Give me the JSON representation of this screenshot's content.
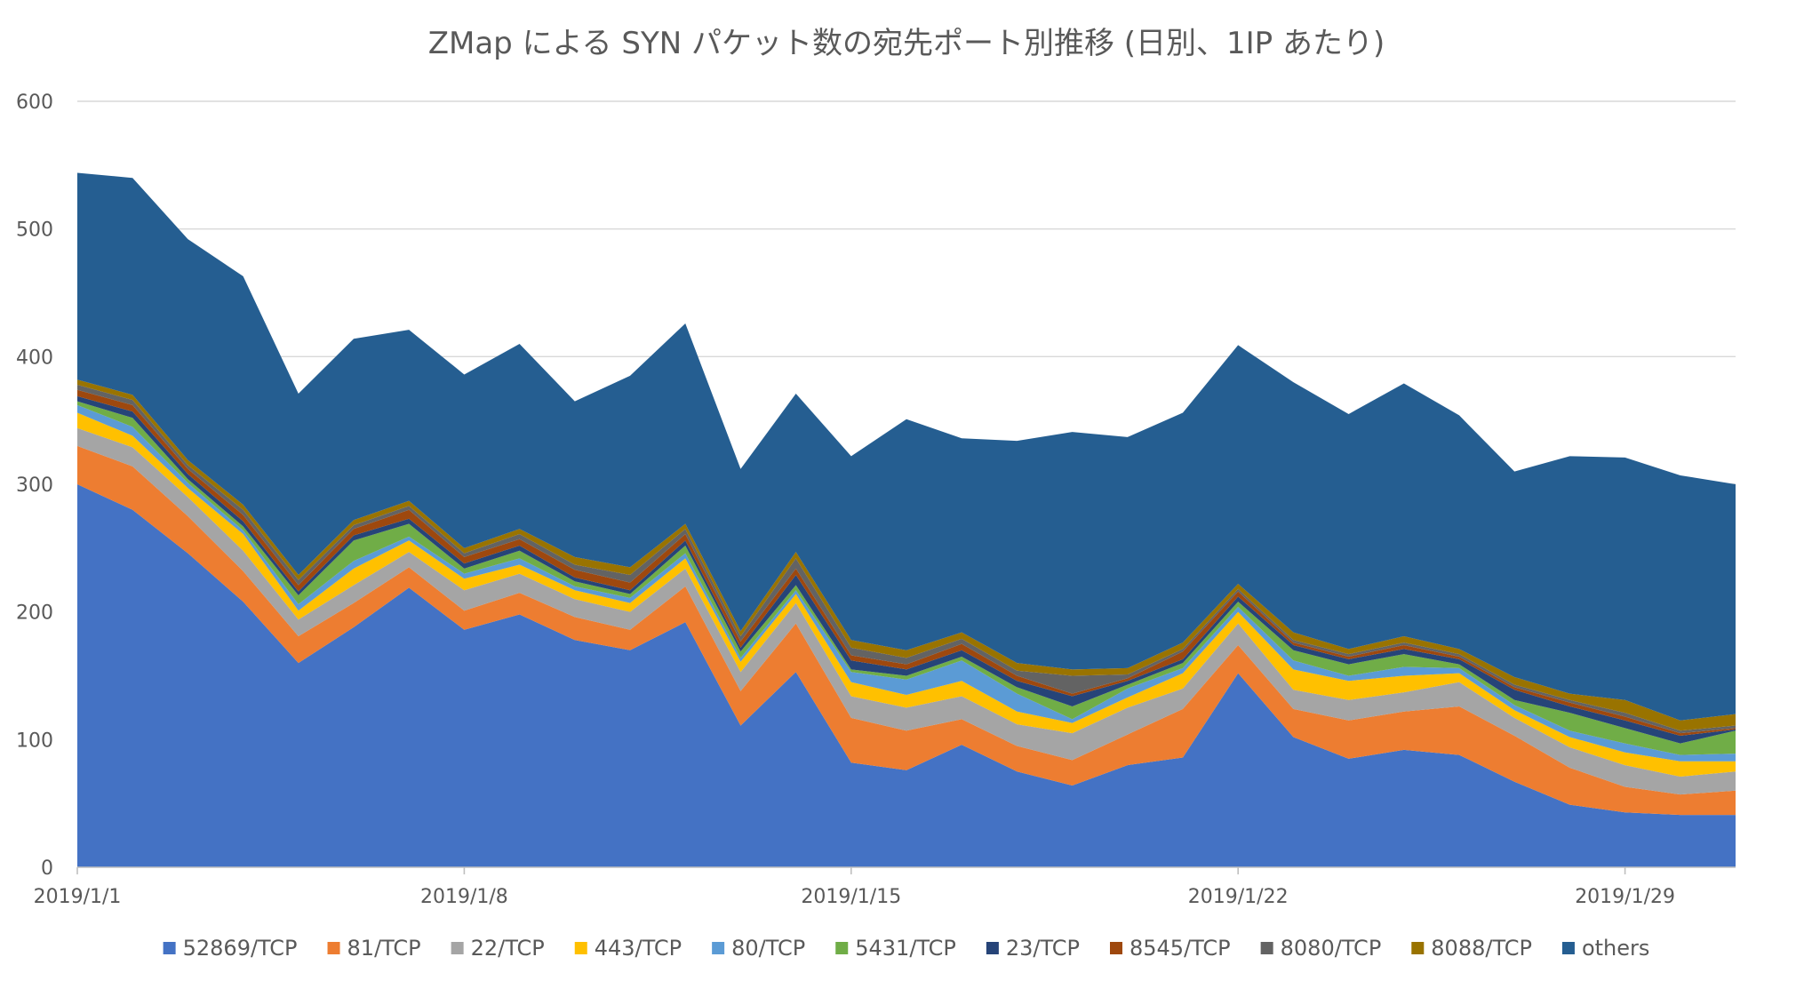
{
  "chart_data": {
    "type": "area",
    "stacked": true,
    "title": "ZMap による SYN パケット数の宛先ポート別推移 (日別、1IP あたり)",
    "xlabel": "",
    "ylabel": "",
    "ylim": [
      0,
      600
    ],
    "yticks": [
      0,
      100,
      200,
      300,
      400,
      500,
      600
    ],
    "x": [
      "2019/1/1",
      "2019/1/2",
      "2019/1/3",
      "2019/1/4",
      "2019/1/5",
      "2019/1/6",
      "2019/1/7",
      "2019/1/8",
      "2019/1/9",
      "2019/1/10",
      "2019/1/11",
      "2019/1/12",
      "2019/1/13",
      "2019/1/14",
      "2019/1/15",
      "2019/1/16",
      "2019/1/17",
      "2019/1/18",
      "2019/1/19",
      "2019/1/20",
      "2019/1/21",
      "2019/1/22",
      "2019/1/23",
      "2019/1/24",
      "2019/1/25",
      "2019/1/26",
      "2019/1/27",
      "2019/1/28",
      "2019/1/29",
      "2019/1/30",
      "2019/1/31"
    ],
    "xtick_labels": [
      {
        "index": 0,
        "label": "2019/1/1"
      },
      {
        "index": 7,
        "label": "2019/1/8"
      },
      {
        "index": 14,
        "label": "2019/1/15"
      },
      {
        "index": 21,
        "label": "2019/1/22"
      },
      {
        "index": 28,
        "label": "2019/1/29"
      }
    ],
    "grid": true,
    "legend_position": "bottom",
    "series": [
      {
        "name": "52869/TCP",
        "color": "#4472C4",
        "values": [
          300,
          280,
          246,
          208,
          160,
          188,
          219,
          186,
          198,
          178,
          170,
          192,
          111,
          153,
          82,
          76,
          96,
          75,
          64,
          80,
          86,
          152,
          102,
          85,
          92,
          88,
          67,
          49,
          43,
          41,
          41
        ]
      },
      {
        "name": "81/TCP",
        "color": "#ED7D31",
        "values": [
          30,
          34,
          29,
          24,
          21,
          19,
          16,
          15,
          17,
          18,
          16,
          28,
          27,
          38,
          35,
          31,
          20,
          20,
          20,
          24,
          38,
          22,
          22,
          30,
          30,
          38,
          36,
          29,
          20,
          16,
          19
        ]
      },
      {
        "name": "22/TCP",
        "color": "#A5A5A5",
        "values": [
          14,
          15,
          15,
          16,
          13,
          14,
          12,
          16,
          15,
          14,
          14,
          14,
          15,
          16,
          17,
          18,
          18,
          17,
          21,
          21,
          16,
          17,
          15,
          16,
          15,
          19,
          14,
          16,
          17,
          14,
          15
        ]
      },
      {
        "name": "443/TCP",
        "color": "#FFC000",
        "values": [
          12,
          9,
          7,
          13,
          7,
          13,
          9,
          9,
          7,
          7,
          7,
          8,
          8,
          7,
          11,
          10,
          12,
          10,
          8,
          8,
          12,
          9,
          16,
          15,
          13,
          7,
          6,
          8,
          10,
          12,
          8
        ]
      },
      {
        "name": "80/TCP",
        "color": "#5B9BD5",
        "values": [
          6,
          7,
          4,
          3,
          5,
          6,
          3,
          4,
          5,
          3,
          4,
          4,
          3,
          3,
          8,
          12,
          16,
          14,
          3,
          7,
          4,
          4,
          7,
          4,
          7,
          4,
          4,
          5,
          7,
          5,
          6
        ]
      },
      {
        "name": "5431/TCP",
        "color": "#70AD47",
        "values": [
          3,
          7,
          3,
          3,
          7,
          16,
          10,
          4,
          6,
          4,
          3,
          6,
          5,
          4,
          2,
          3,
          3,
          5,
          10,
          3,
          4,
          4,
          8,
          9,
          10,
          3,
          4,
          14,
          12,
          9,
          18
        ]
      },
      {
        "name": "23/TCP",
        "color": "#264478",
        "values": [
          4,
          5,
          4,
          4,
          3,
          4,
          4,
          4,
          4,
          3,
          3,
          4,
          3,
          8,
          7,
          5,
          5,
          5,
          8,
          3,
          3,
          4,
          4,
          4,
          4,
          4,
          8,
          5,
          6,
          6,
          1
        ]
      },
      {
        "name": "8545/TCP",
        "color": "#9E480E",
        "values": [
          5,
          5,
          4,
          5,
          5,
          5,
          7,
          5,
          5,
          6,
          6,
          5,
          5,
          5,
          4,
          4,
          5,
          4,
          2,
          2,
          6,
          4,
          2,
          2,
          3,
          2,
          2,
          3,
          3,
          2,
          1
        ]
      },
      {
        "name": "8080/TCP",
        "color": "#636363",
        "values": [
          4,
          4,
          3,
          4,
          4,
          3,
          3,
          3,
          4,
          4,
          6,
          4,
          4,
          8,
          6,
          5,
          4,
          4,
          14,
          3,
          2,
          2,
          2,
          2,
          2,
          2,
          2,
          2,
          3,
          2,
          2
        ]
      },
      {
        "name": "8088/TCP",
        "color": "#997300",
        "values": [
          4,
          4,
          4,
          4,
          4,
          4,
          4,
          4,
          4,
          6,
          6,
          4,
          4,
          5,
          6,
          6,
          5,
          6,
          5,
          5,
          5,
          4,
          6,
          4,
          5,
          4,
          6,
          5,
          10,
          8,
          9
        ]
      },
      {
        "name": "others",
        "color": "#255E91",
        "values": [
          162,
          170,
          173,
          179,
          142,
          142,
          134,
          136,
          145,
          122,
          150,
          157,
          127,
          124,
          144,
          181,
          152,
          174,
          186,
          181,
          180,
          187,
          196,
          184,
          198,
          183,
          161,
          186,
          190,
          192,
          180
        ]
      }
    ]
  }
}
